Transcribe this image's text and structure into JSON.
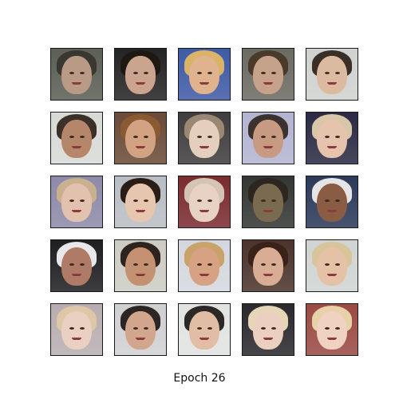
{
  "caption": "Epoch 26",
  "grid": {
    "rows": 5,
    "cols": 5
  },
  "tiles": [
    {
      "bg": "#5b5f55",
      "hair": "#3a3630",
      "skin": "#b89a86"
    },
    {
      "bg": "#242424",
      "hair": "#1e1812",
      "skin": "#caa48e"
    },
    {
      "bg": "#3f5aa6",
      "hair": "#d9b36a",
      "skin": "#e0b28e"
    },
    {
      "bg": "#6b6a62",
      "hair": "#4a3a2a",
      "skin": "#c7a28a"
    },
    {
      "bg": "#cfd2cf",
      "hair": "#3a2f27",
      "skin": "#dcbaa0"
    },
    {
      "bg": "#d8dad6",
      "hair": "#3d3028",
      "skin": "#b5866a"
    },
    {
      "bg": "#6a4a38",
      "hair": "#8a5a32",
      "skin": "#d2a283"
    },
    {
      "bg": "#3f3d3d",
      "hair": "#9a8872",
      "skin": "#e4cfbd"
    },
    {
      "bg": "#b3b4d0",
      "hair": "#3b3230",
      "skin": "#c99a82"
    },
    {
      "bg": "#2a2a44",
      "hair": "#d8c6a8",
      "skin": "#e5c3ad"
    },
    {
      "bg": "#8c8aa8",
      "hair": "#c9b08e",
      "skin": "#e2c2ae"
    },
    {
      "bg": "#b9bec4",
      "hair": "#2a1d18",
      "skin": "#e7c6b0"
    },
    {
      "bg": "#7a2c30",
      "hair": "#d3c4b4",
      "skin": "#e8d2c4"
    },
    {
      "bg": "#343634",
      "hair": "#2d2620",
      "skin": "#7a6a50"
    },
    {
      "bg": "#2b3a5a",
      "hair": "#e5e5e5",
      "skin": "#8a5c44"
    },
    {
      "bg": "#1f1f22",
      "hair": "#e8e8ea",
      "skin": "#b07b66"
    },
    {
      "bg": "#ccccc4",
      "hair": "#2e231d",
      "skin": "#c59173"
    },
    {
      "bg": "#d4d8de",
      "hair": "#c9a26a",
      "skin": "#d7a284"
    },
    {
      "bg": "#4a342c",
      "hair": "#3b2218",
      "skin": "#d9ad94"
    },
    {
      "bg": "#cfd4d2",
      "hair": "#d8c49a",
      "skin": "#e5c2a6"
    },
    {
      "bg": "#b8aeb2",
      "hair": "#ddc7a6",
      "skin": "#e9d0c0"
    },
    {
      "bg": "#d0d0d2",
      "hair": "#2b2524",
      "skin": "#d2a68c"
    },
    {
      "bg": "#e1e3e3",
      "hair": "#2c2826",
      "skin": "#e2bda6"
    },
    {
      "bg": "#2a2a2e",
      "hair": "#e6d6b8",
      "skin": "#ecd0bf"
    },
    {
      "bg": "#9a4a44",
      "hair": "#e8d0a8",
      "skin": "#efd3c0"
    }
  ]
}
